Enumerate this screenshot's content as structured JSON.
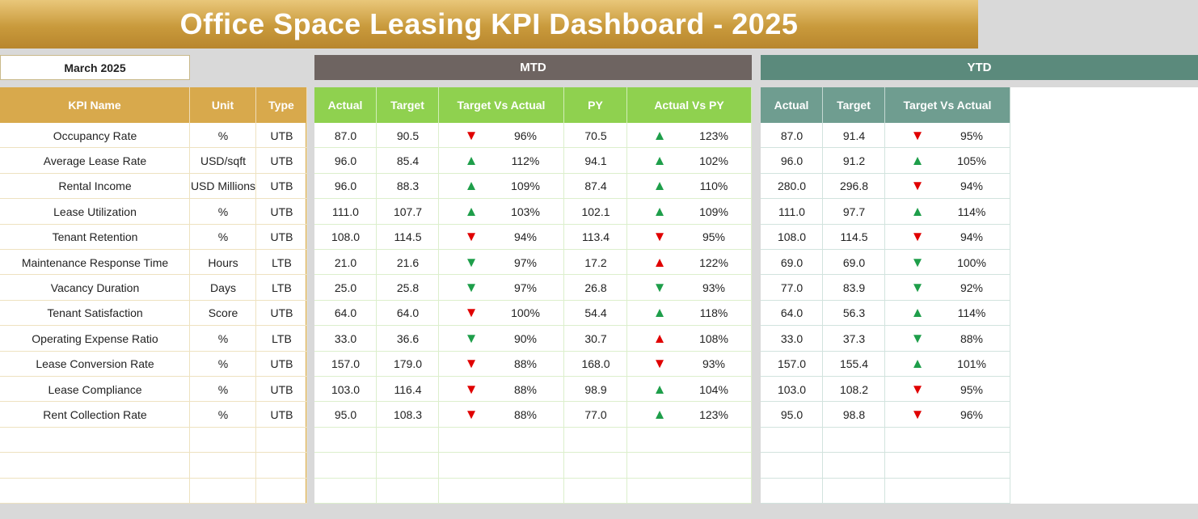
{
  "header": {
    "title": "Office Space Leasing KPI Dashboard - 2025",
    "month": "March 2025",
    "mtd_label": "MTD",
    "ytd_label": "YTD"
  },
  "table": {
    "left_columns": [
      "KPI Name",
      "Unit",
      "Type"
    ],
    "mtd_columns": [
      "Actual",
      "Target",
      "Target Vs Actual",
      "PY",
      "Actual Vs PY"
    ],
    "ytd_columns": [
      "Actual",
      "Target",
      "Target Vs Actual"
    ],
    "rows": [
      [
        "Occupancy Rate",
        "%",
        "UTB",
        "87.0",
        "90.5",
        {
          "symbol": "▼",
          "color": "#e00000"
        },
        "96%",
        "70.5",
        {
          "symbol": "▲",
          "color": "#1e9e4a"
        },
        "123%",
        "87.0",
        "91.4",
        {
          "symbol": "▼",
          "color": "#e00000"
        },
        "95%"
      ],
      [
        "Average Lease Rate",
        "USD/sqft",
        "UTB",
        "96.0",
        "85.4",
        {
          "symbol": "▲",
          "color": "#1e9e4a"
        },
        "112%",
        "94.1",
        {
          "symbol": "▲",
          "color": "#1e9e4a"
        },
        "102%",
        "96.0",
        "91.2",
        {
          "symbol": "▲",
          "color": "#1e9e4a"
        },
        "105%"
      ],
      [
        "Rental Income",
        "USD Millions",
        "UTB",
        "96.0",
        "88.3",
        {
          "symbol": "▲",
          "color": "#1e9e4a"
        },
        "109%",
        "87.4",
        {
          "symbol": "▲",
          "color": "#1e9e4a"
        },
        "110%",
        "280.0",
        "296.8",
        {
          "symbol": "▼",
          "color": "#e00000"
        },
        "94%"
      ],
      [
        "Lease Utilization",
        "%",
        "UTB",
        "111.0",
        "107.7",
        {
          "symbol": "▲",
          "color": "#1e9e4a"
        },
        "103%",
        "102.1",
        {
          "symbol": "▲",
          "color": "#1e9e4a"
        },
        "109%",
        "111.0",
        "97.7",
        {
          "symbol": "▲",
          "color": "#1e9e4a"
        },
        "114%"
      ],
      [
        "Tenant Retention",
        "%",
        "UTB",
        "108.0",
        "114.5",
        {
          "symbol": "▼",
          "color": "#e00000"
        },
        "94%",
        "113.4",
        {
          "symbol": "▼",
          "color": "#e00000"
        },
        "95%",
        "108.0",
        "114.5",
        {
          "symbol": "▼",
          "color": "#e00000"
        },
        "94%"
      ],
      [
        "Maintenance Response Time",
        "Hours",
        "LTB",
        "21.0",
        "21.6",
        {
          "symbol": "▼",
          "color": "#1e9e4a"
        },
        "97%",
        "17.2",
        {
          "symbol": "▲",
          "color": "#e00000"
        },
        "122%",
        "69.0",
        "69.0",
        {
          "symbol": "▼",
          "color": "#1e9e4a"
        },
        "100%"
      ],
      [
        "Vacancy Duration",
        "Days",
        "LTB",
        "25.0",
        "25.8",
        {
          "symbol": "▼",
          "color": "#1e9e4a"
        },
        "97%",
        "26.8",
        {
          "symbol": "▼",
          "color": "#1e9e4a"
        },
        "93%",
        "77.0",
        "83.9",
        {
          "symbol": "▼",
          "color": "#1e9e4a"
        },
        "92%"
      ],
      [
        "Tenant Satisfaction",
        "Score",
        "UTB",
        "64.0",
        "64.0",
        {
          "symbol": "▼",
          "color": "#e00000"
        },
        "100%",
        "54.4",
        {
          "symbol": "▲",
          "color": "#1e9e4a"
        },
        "118%",
        "64.0",
        "56.3",
        {
          "symbol": "▲",
          "color": "#1e9e4a"
        },
        "114%"
      ],
      [
        "Operating Expense Ratio",
        "%",
        "LTB",
        "33.0",
        "36.6",
        {
          "symbol": "▼",
          "color": "#1e9e4a"
        },
        "90%",
        "30.7",
        {
          "symbol": "▲",
          "color": "#e00000"
        },
        "108%",
        "33.0",
        "37.3",
        {
          "symbol": "▼",
          "color": "#1e9e4a"
        },
        "88%"
      ],
      [
        "Lease Conversion Rate",
        "%",
        "UTB",
        "157.0",
        "179.0",
        {
          "symbol": "▼",
          "color": "#e00000"
        },
        "88%",
        "168.0",
        {
          "symbol": "▼",
          "color": "#e00000"
        },
        "93%",
        "157.0",
        "155.4",
        {
          "symbol": "▲",
          "color": "#1e9e4a"
        },
        "101%"
      ],
      [
        "Lease Compliance",
        "%",
        "UTB",
        "103.0",
        "116.4",
        {
          "symbol": "▼",
          "color": "#e00000"
        },
        "88%",
        "98.9",
        {
          "symbol": "▲",
          "color": "#1e9e4a"
        },
        "104%",
        "103.0",
        "108.2",
        {
          "symbol": "▼",
          "color": "#e00000"
        },
        "95%"
      ],
      [
        "Rent Collection Rate",
        "%",
        "UTB",
        "95.0",
        "108.3",
        {
          "symbol": "▼",
          "color": "#e00000"
        },
        "88%",
        "77.0",
        {
          "symbol": "▲",
          "color": "#1e9e4a"
        },
        "123%",
        "95.0",
        "98.8",
        {
          "symbol": "▼",
          "color": "#e00000"
        },
        "96%"
      ]
    ]
  }
}
